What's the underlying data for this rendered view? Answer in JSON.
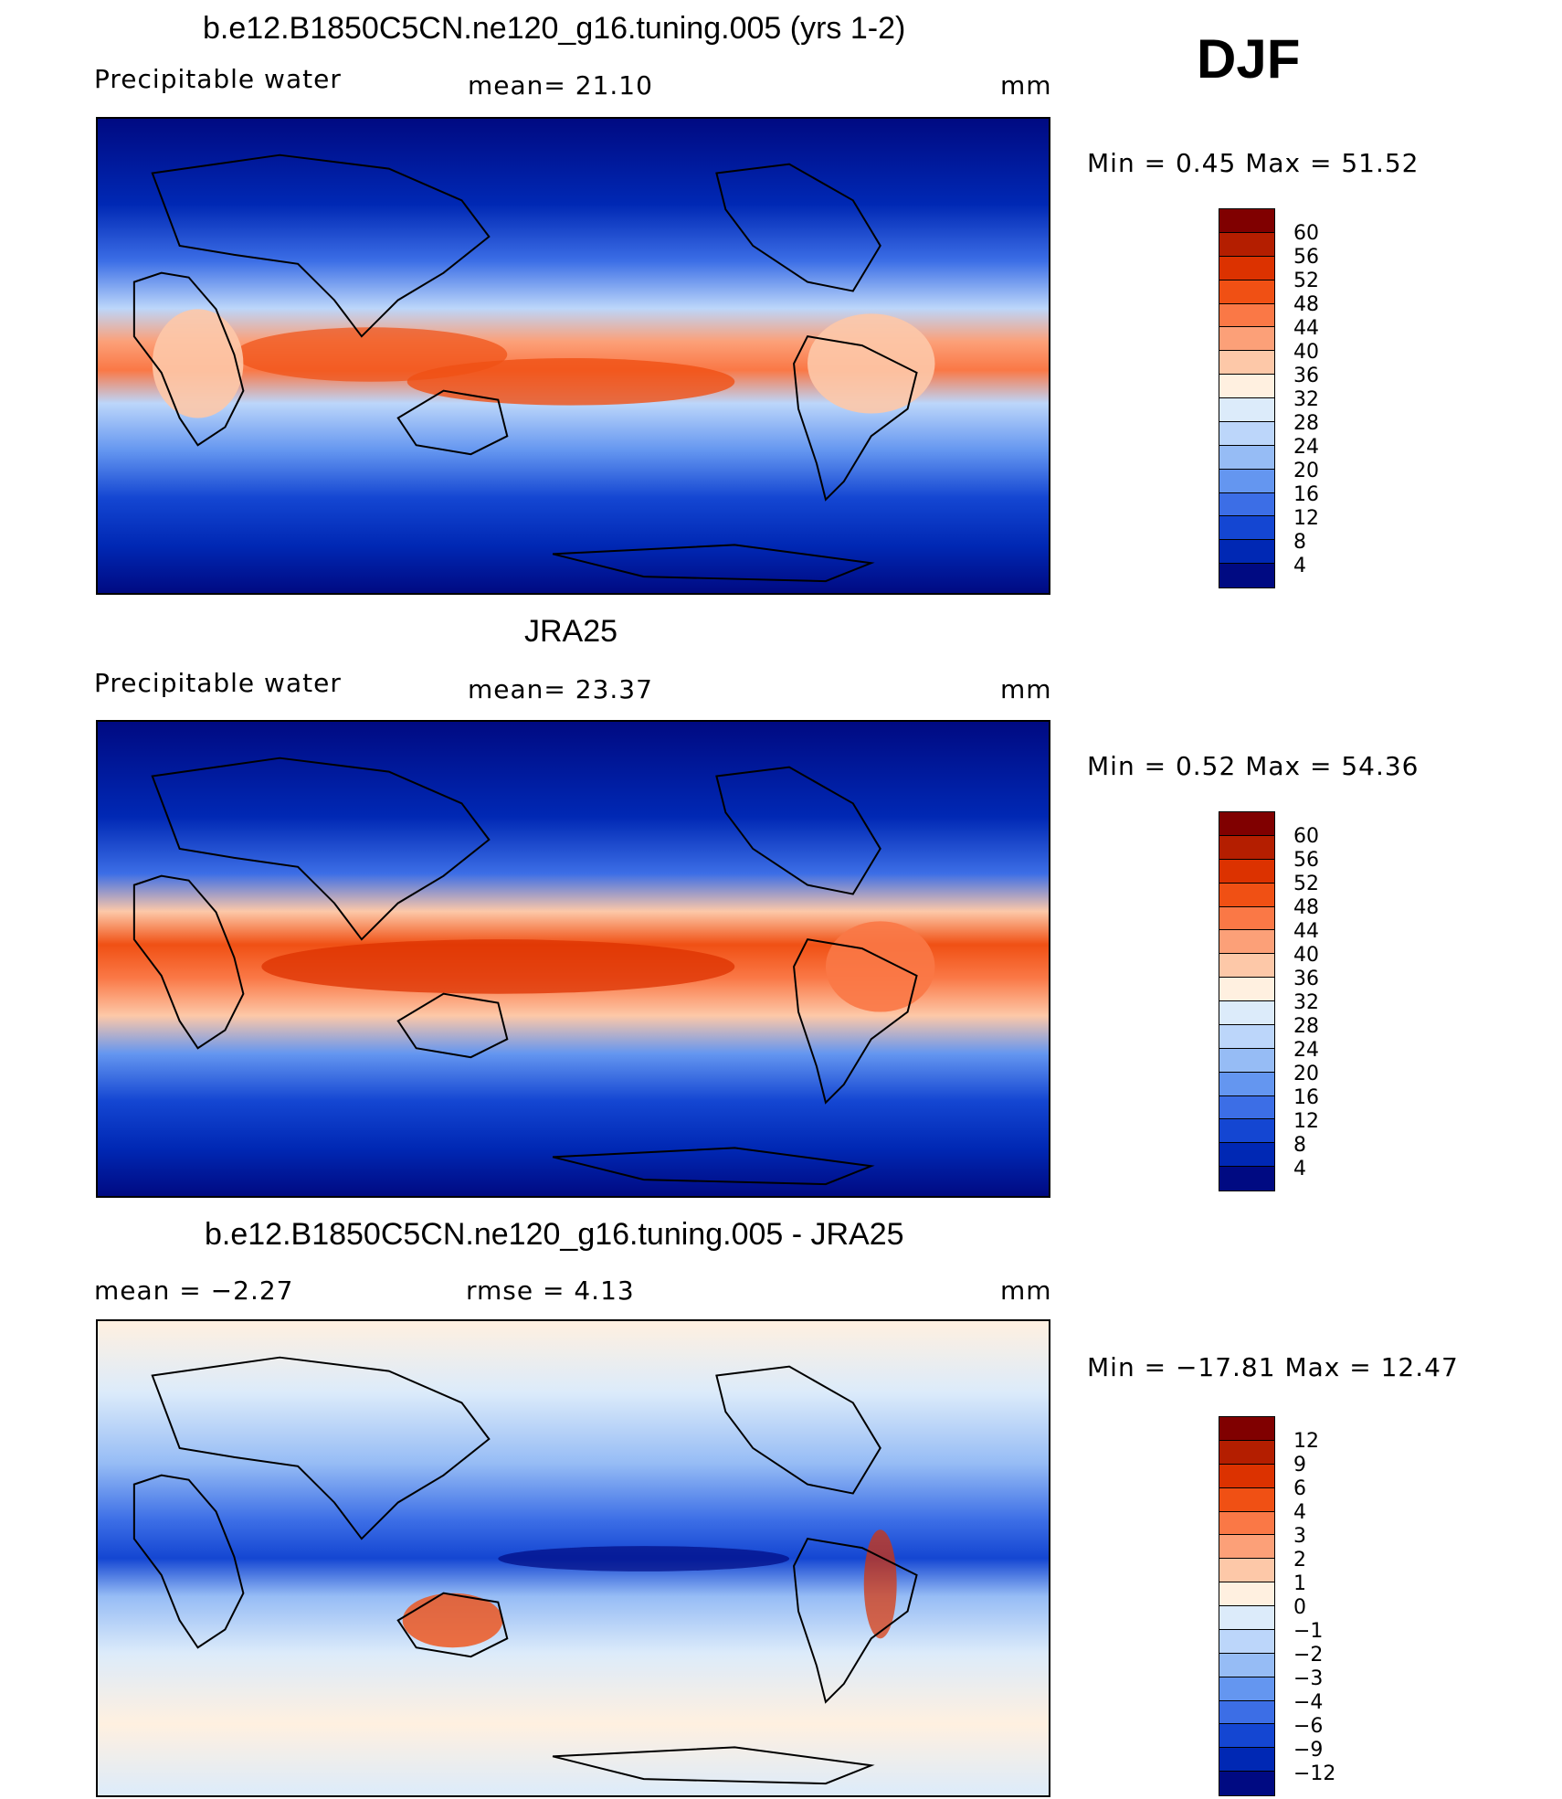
{
  "season": "DJF",
  "panels": [
    {
      "title": "b.e12.B1850C5CN.ne120_g16.tuning.005 (yrs 1-2)",
      "left_label": "Precipitable  water",
      "mid_label": "mean=   21.10",
      "units": "mm",
      "minmax": "Min  =     0.45  Max  =    51.52",
      "colorbar": {
        "ticks": [
          "60",
          "56",
          "52",
          "48",
          "44",
          "40",
          "36",
          "32",
          "28",
          "24",
          "20",
          "16",
          "12",
          "8",
          "4"
        ],
        "colors": [
          "#800000",
          "#b41e00",
          "#dc3200",
          "#f05014",
          "#fa7846",
          "#fca078",
          "#fdc8a8",
          "#fff0e0",
          "#dcebfa",
          "#bcd6fa",
          "#96bcf5",
          "#6496f0",
          "#3c6ee6",
          "#1446d2",
          "#0028b4",
          "#000a82"
        ]
      }
    },
    {
      "title": "JRA25",
      "left_label": "Precipitable  water",
      "mid_label": "mean=   23.37",
      "units": "mm",
      "minmax": "Min  =     0.52  Max  =    54.36",
      "colorbar": {
        "ticks": [
          "60",
          "56",
          "52",
          "48",
          "44",
          "40",
          "36",
          "32",
          "28",
          "24",
          "20",
          "16",
          "12",
          "8",
          "4"
        ],
        "colors": [
          "#800000",
          "#b41e00",
          "#dc3200",
          "#f05014",
          "#fa7846",
          "#fca078",
          "#fdc8a8",
          "#fff0e0",
          "#dcebfa",
          "#bcd6fa",
          "#96bcf5",
          "#6496f0",
          "#3c6ee6",
          "#1446d2",
          "#0028b4",
          "#000a82"
        ]
      }
    },
    {
      "title": "b.e12.B1850C5CN.ne120_g16.tuning.005 - JRA25",
      "left_label": "mean  =    −2.27",
      "mid_label": "rmse  =     4.13",
      "units": "mm",
      "minmax": "Min  = −17.81  Max  =    12.47",
      "colorbar": {
        "ticks": [
          "12",
          "9",
          "6",
          "4",
          "3",
          "2",
          "1",
          "0",
          "−1",
          "−2",
          "−3",
          "−4",
          "−6",
          "−9",
          "−12"
        ],
        "colors": [
          "#800000",
          "#b41e00",
          "#dc3200",
          "#f05014",
          "#fa7846",
          "#fca078",
          "#fdc8a8",
          "#fff0e0",
          "#dcebfa",
          "#bcd6fa",
          "#96bcf5",
          "#6496f0",
          "#3c6ee6",
          "#1446d2",
          "#0028b4",
          "#000a82"
        ]
      }
    }
  ],
  "chart_data": [
    {
      "type": "heatmap",
      "title": "b.e12.B1850C5CN.ne120_g16.tuning.005 (yrs 1-2)",
      "variable": "Precipitable  water",
      "units": "mm",
      "mean": 21.1,
      "min": 0.45,
      "max": 51.52,
      "levels": [
        4,
        8,
        12,
        16,
        20,
        24,
        28,
        32,
        36,
        40,
        44,
        48,
        52,
        56,
        60
      ]
    },
    {
      "type": "heatmap",
      "title": "JRA25",
      "variable": "Precipitable  water",
      "units": "mm",
      "mean": 23.37,
      "min": 0.52,
      "max": 54.36,
      "levels": [
        4,
        8,
        12,
        16,
        20,
        24,
        28,
        32,
        36,
        40,
        44,
        48,
        52,
        56,
        60
      ]
    },
    {
      "type": "heatmap",
      "title": "b.e12.B1850C5CN.ne120_g16.tuning.005 - JRA25",
      "units": "mm",
      "mean": -2.27,
      "rmse": 4.13,
      "min": -17.81,
      "max": 12.47,
      "levels": [
        -12,
        -9,
        -6,
        -4,
        -3,
        -2,
        -1,
        0,
        1,
        2,
        3,
        4,
        6,
        9,
        12
      ]
    }
  ]
}
